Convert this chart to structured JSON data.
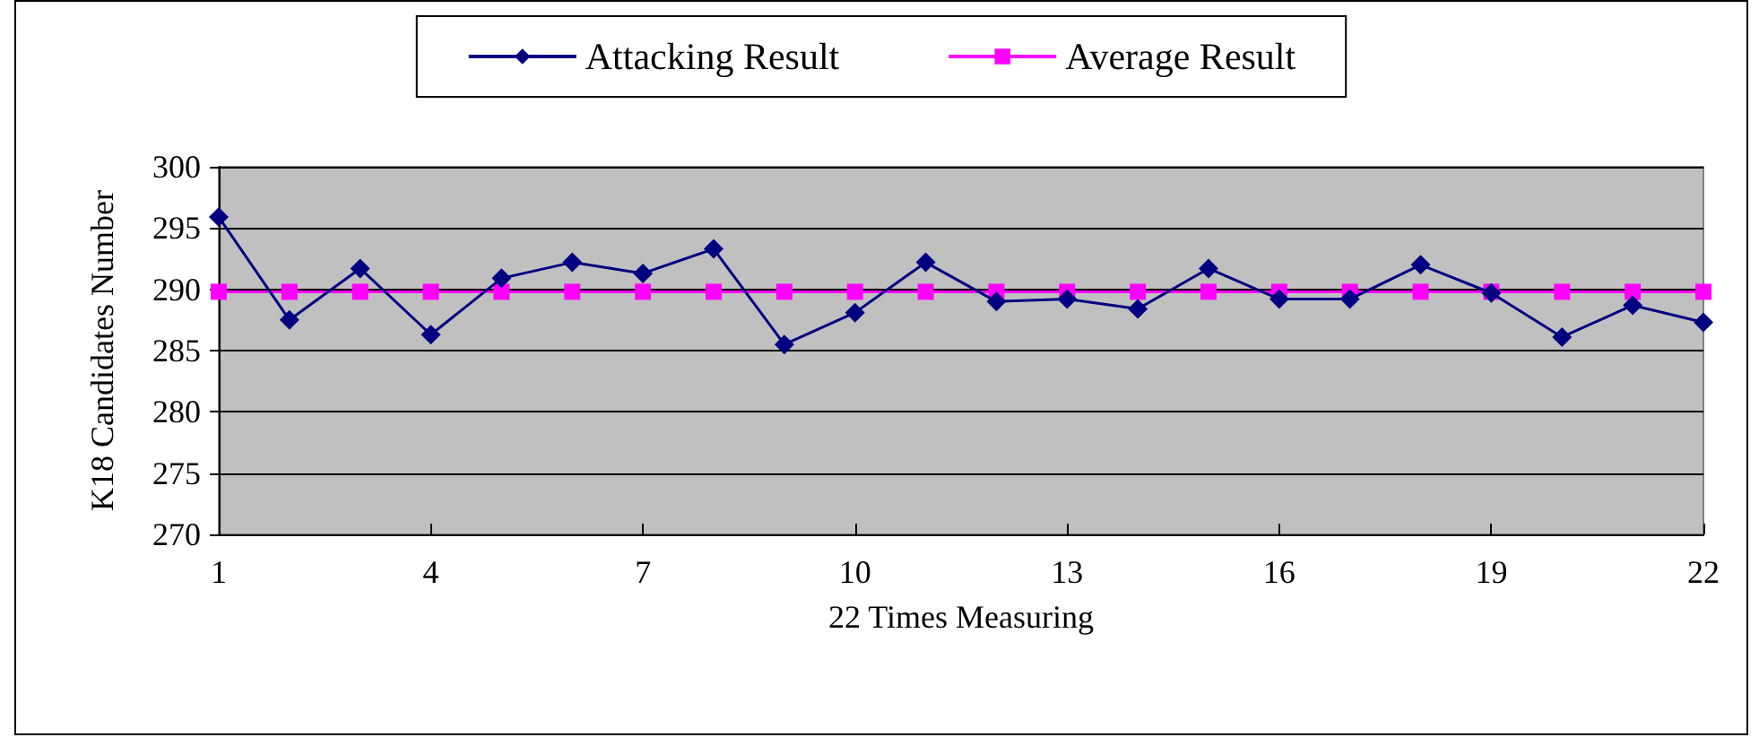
{
  "chart_data": {
    "type": "line",
    "xlabel": "22 Times Measuring",
    "ylabel": "K18 Candidates Number",
    "x": [
      1,
      2,
      3,
      4,
      5,
      6,
      7,
      8,
      9,
      10,
      11,
      12,
      13,
      14,
      15,
      16,
      17,
      18,
      19,
      20,
      21,
      22
    ],
    "series": [
      {
        "name": "Attacking Result",
        "color": "#000080",
        "marker": "diamond",
        "values": [
          295.9,
          287.5,
          291.7,
          286.3,
          290.9,
          292.2,
          291.3,
          293.3,
          285.5,
          288.1,
          292.2,
          289.0,
          289.2,
          288.4,
          291.7,
          289.2,
          289.2,
          292.0,
          289.7,
          286.1,
          288.7,
          287.3
        ]
      },
      {
        "name": "Average Result",
        "color": "#ff00ff",
        "marker": "square",
        "values": [
          289.8,
          289.8,
          289.8,
          289.8,
          289.8,
          289.8,
          289.8,
          289.8,
          289.8,
          289.8,
          289.8,
          289.8,
          289.8,
          289.8,
          289.8,
          289.8,
          289.8,
          289.8,
          289.8,
          289.8,
          289.8,
          289.8
        ]
      }
    ],
    "xlim": [
      1,
      22
    ],
    "xticks": [
      1,
      4,
      7,
      10,
      13,
      16,
      19,
      22
    ],
    "ylim": [
      270,
      300
    ],
    "yticks": [
      270,
      275,
      280,
      285,
      290,
      295,
      300
    ],
    "grid": "y",
    "legend": "top",
    "line_style": "solid"
  }
}
